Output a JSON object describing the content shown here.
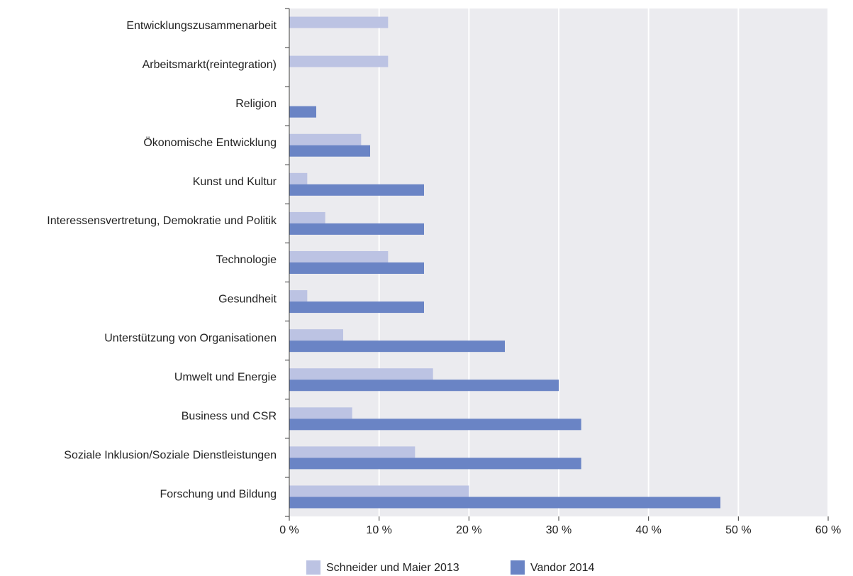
{
  "chart_data": {
    "type": "barh",
    "categories": [
      "Entwicklungszusammenarbeit",
      "Arbeitsmarkt(reintegration)",
      "Religion",
      "Ökonomische Entwicklung",
      "Kunst und Kultur",
      "Interessensvertretung, Demokratie und Politik",
      "Technologie",
      "Gesundheit",
      "Unterstützung von Organisationen",
      "Umwelt und Energie",
      "Business und CSR",
      "Soziale Inklusion/Soziale Dienstleistungen",
      "Forschung und Bildung"
    ],
    "series": [
      {
        "name": "Schneider und Maier 2013",
        "color": "#bcc3e3",
        "values": [
          11,
          11,
          null,
          8,
          2,
          4,
          11,
          2,
          6,
          16,
          7,
          14,
          20
        ]
      },
      {
        "name": "Vandor 2014",
        "color": "#6a84c5",
        "values": [
          null,
          null,
          3,
          9,
          15,
          15,
          15,
          15,
          24,
          30,
          32.5,
          32.5,
          48
        ]
      }
    ],
    "xlim": [
      0,
      60
    ],
    "xticks": [
      {
        "value": 0,
        "label": "0 %"
      },
      {
        "value": 10,
        "label": "10 %"
      },
      {
        "value": 20,
        "label": "20 %"
      },
      {
        "value": 30,
        "label": "30 %"
      },
      {
        "value": 40,
        "label": "40 %"
      },
      {
        "value": 50,
        "label": "50 %"
      },
      {
        "value": 60,
        "label": "60 %"
      }
    ],
    "grid": true,
    "legend": "bottom"
  }
}
